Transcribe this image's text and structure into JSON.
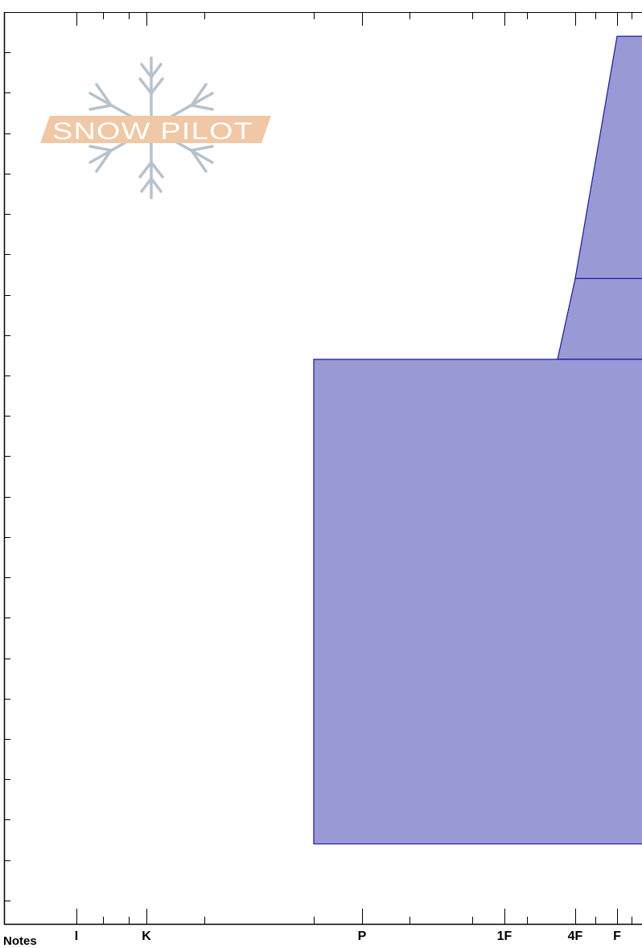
{
  "chart_data": {
    "type": "hardness-profile",
    "hardness_ticks": [
      "I",
      "K",
      "P",
      "1F",
      "4F",
      "F"
    ],
    "layers": [
      {
        "top_depth": 0.3,
        "bottom_depth": 3.3,
        "hardness_top": "F",
        "hardness_bottom": "4F"
      },
      {
        "top_depth": 3.3,
        "bottom_depth": 4.3,
        "hardness_top": "4F",
        "hardness_bottom": "4F-"
      },
      {
        "top_depth": 4.3,
        "bottom_depth": 10.3,
        "hardness_top": "P-",
        "hardness_bottom": "P-"
      }
    ],
    "y_range": [
      0,
      11.3
    ],
    "grid": false,
    "colors": {
      "fill": "#9999d6",
      "stroke": "#1a1aa0",
      "axis": "#000000"
    }
  },
  "logo": {
    "text": "SNOW PILOT"
  },
  "notes_label": "Notes"
}
